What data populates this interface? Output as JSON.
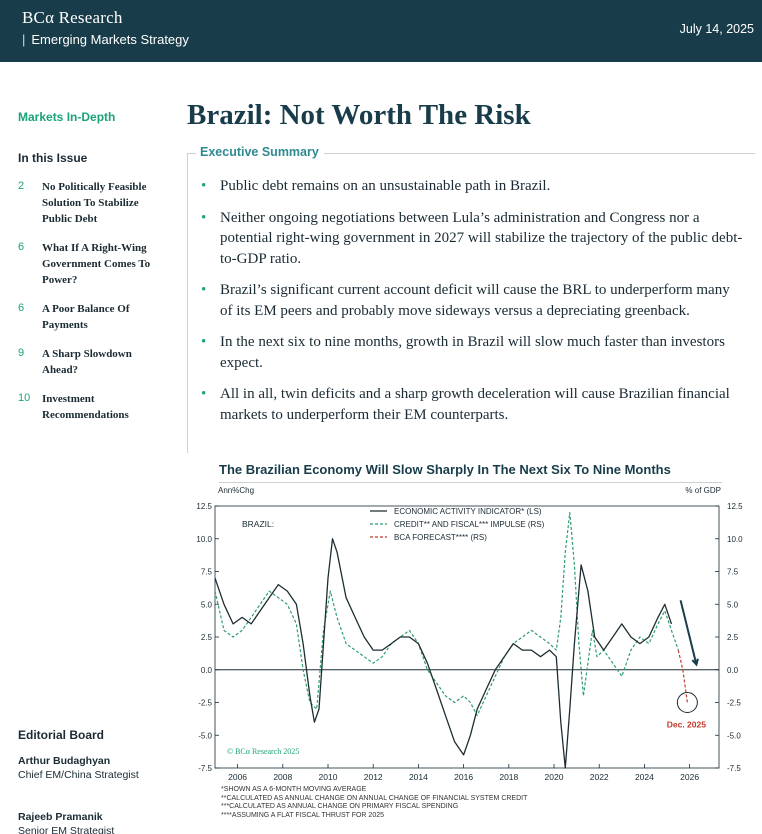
{
  "header": {
    "brand": "BCα Research",
    "product_separator": "|",
    "product": "Emerging Markets Strategy",
    "date": "July 14, 2025"
  },
  "sidebar": {
    "section": "Markets In-Depth",
    "issue_title": "In this Issue",
    "toc": [
      {
        "page": "2",
        "title": "No Politically Feasible Solution To Stabilize Public Debt"
      },
      {
        "page": "6",
        "title": "What If A Right-Wing Government Comes To Power?"
      },
      {
        "page": "6",
        "title": "A Poor Balance Of Payments"
      },
      {
        "page": "9",
        "title": "A Sharp Slowdown Ahead?"
      },
      {
        "page": "10",
        "title": "Investment Recommendations"
      }
    ],
    "board_title": "Editorial Board",
    "board": [
      {
        "name": "Arthur Budaghyan",
        "role": "Chief EM/China Strategist"
      },
      {
        "name": "Rajeeb Pramanik",
        "role": "Senior EM Strategist"
      }
    ]
  },
  "main": {
    "title": "Brazil: Not Worth The Risk",
    "exec_label": "Executive Summary",
    "bullets": [
      "Public debt remains on an unsustainable path in Brazil.",
      "Neither ongoing negotiations between Lula’s administration and Congress nor a potential right-wing government in 2027 will stabilize the trajectory of the public debt-to-GDP ratio.",
      "Brazil’s significant current account deficit will cause the BRL to underperform many of its EM peers and probably move sideways versus a depreciating greenback.",
      "In the next six to nine months, growth in Brazil will slow much faster than investors expect.",
      "All in all, twin deficits and a sharp growth deceleration will cause Brazilian financial markets to underperform their EM counterparts."
    ]
  },
  "colors": {
    "header_bg": "#183c4a",
    "accent_green": "#1aa37a",
    "activity_line": "#1e2d33",
    "impulse_line": "#2e9e6e",
    "forecast_line": "#c0392b"
  },
  "chart_data": {
    "type": "line",
    "title": "The Brazilian Economy Will Slow Sharply In The Next Six To Nine Months",
    "region_label": "BRAZIL:",
    "left_axis_label": "Ann%Chg",
    "right_axis_label": "% of GDP",
    "ylim": [
      -7.5,
      12.5
    ],
    "yticks": [
      12.5,
      10.0,
      7.5,
      5.0,
      2.5,
      0.0,
      -2.5,
      -5.0,
      -7.5
    ],
    "ytick_labels": [
      "12.5",
      "10.0",
      "7.5",
      "5.0",
      "2.5",
      "0.0",
      "-2.5",
      "-5.0",
      "-7.5"
    ],
    "xlim": [
      2005,
      2027.3
    ],
    "xticks": [
      2006,
      2008,
      2010,
      2012,
      2014,
      2016,
      2018,
      2020,
      2022,
      2024,
      2026
    ],
    "xtick_labels": [
      "2006",
      "2008",
      "2010",
      "2012",
      "2014",
      "2016",
      "2018",
      "2020",
      "2022",
      "2024",
      "2026"
    ],
    "legend": [
      "ECONOMIC ACTIVITY INDICATOR* (LS)",
      "CREDIT** AND FISCAL*** IMPULSE (RS)",
      "BCA FORECAST**** (RS)"
    ],
    "annotation": "Dec. 2025",
    "watermark": "© BCα Research 2025",
    "footnotes": [
      "*SHOWN AS A 6-MONTH MOVING AVERAGE",
      "**CALCULATED AS ANNUAL CHANGE ON ANNUAL CHANGE OF FINANCIAL SYSTEM CREDIT",
      "***CALCULATED AS ANNUAL CHANGE ON PRIMARY FISCAL SPENDING",
      "****ASSUMING A FLAT FISCAL THRUST FOR 2025"
    ],
    "series": [
      {
        "name": "Economic Activity Indicator (LS)",
        "x": [
          2005.0,
          2005.4,
          2005.8,
          2006.2,
          2006.6,
          2007.0,
          2007.4,
          2007.8,
          2008.2,
          2008.6,
          2008.9,
          2009.2,
          2009.4,
          2009.6,
          2009.8,
          2010.0,
          2010.2,
          2010.4,
          2010.8,
          2011.2,
          2011.6,
          2012.0,
          2012.4,
          2012.8,
          2013.2,
          2013.6,
          2014.0,
          2014.4,
          2014.8,
          2015.2,
          2015.6,
          2016.0,
          2016.3,
          2016.6,
          2017.0,
          2017.4,
          2017.8,
          2018.2,
          2018.6,
          2019.0,
          2019.4,
          2019.8,
          2020.1,
          2020.3,
          2020.5,
          2020.7,
          2020.9,
          2021.2,
          2021.5,
          2021.8,
          2022.2,
          2022.6,
          2023.0,
          2023.4,
          2023.8,
          2024.2,
          2024.6,
          2024.9,
          2025.2
        ],
        "values": [
          7.0,
          5.0,
          3.5,
          4.0,
          3.5,
          4.5,
          5.5,
          6.5,
          6.0,
          5.0,
          2.0,
          -2.0,
          -4.0,
          -3.0,
          2.0,
          7.0,
          10.0,
          9.0,
          5.5,
          4.0,
          2.5,
          1.5,
          1.5,
          2.0,
          2.5,
          2.5,
          2.0,
          0.5,
          -1.5,
          -3.5,
          -5.5,
          -6.5,
          -5.0,
          -3.0,
          -1.5,
          0.0,
          1.0,
          2.0,
          1.5,
          1.5,
          1.0,
          1.5,
          1.0,
          -4.0,
          -7.5,
          -3.0,
          2.0,
          8.0,
          6.0,
          2.5,
          1.5,
          2.5,
          3.5,
          2.5,
          2.0,
          2.5,
          4.0,
          5.0,
          3.5
        ]
      },
      {
        "name": "Credit and Fiscal Impulse (RS)",
        "x": [
          2005.0,
          2005.4,
          2005.8,
          2006.2,
          2006.6,
          2007.0,
          2007.4,
          2007.8,
          2008.2,
          2008.6,
          2008.9,
          2009.2,
          2009.5,
          2009.8,
          2010.1,
          2010.4,
          2010.8,
          2011.2,
          2011.6,
          2012.0,
          2012.4,
          2012.8,
          2013.2,
          2013.6,
          2014.0,
          2014.4,
          2014.8,
          2015.2,
          2015.6,
          2016.0,
          2016.3,
          2016.6,
          2017.0,
          2017.4,
          2017.8,
          2018.2,
          2018.6,
          2019.0,
          2019.4,
          2019.8,
          2020.1,
          2020.3,
          2020.5,
          2020.7,
          2020.9,
          2021.1,
          2021.3,
          2021.5,
          2021.7,
          2021.9,
          2022.2,
          2022.6,
          2023.0,
          2023.4,
          2023.8,
          2024.2,
          2024.6,
          2024.9,
          2025.2,
          2025.5
        ],
        "values": [
          6.0,
          3.0,
          2.5,
          3.0,
          4.0,
          5.0,
          6.0,
          5.5,
          5.0,
          3.5,
          0.0,
          -2.5,
          -3.0,
          3.0,
          6.0,
          4.0,
          2.0,
          1.5,
          1.0,
          0.5,
          1.0,
          2.0,
          2.5,
          3.0,
          2.0,
          0.0,
          -1.0,
          -2.0,
          -2.5,
          -2.0,
          -2.5,
          -3.5,
          -2.0,
          -0.5,
          1.0,
          2.0,
          2.5,
          3.0,
          2.5,
          2.0,
          1.5,
          4.0,
          9.0,
          12.0,
          8.0,
          2.0,
          -2.0,
          0.5,
          3.0,
          1.0,
          1.5,
          0.5,
          -0.5,
          1.5,
          2.5,
          2.0,
          3.5,
          4.5,
          3.0,
          1.5
        ]
      },
      {
        "name": "BCA Forecast (RS)",
        "x": [
          2025.5,
          2025.7,
          2025.9
        ],
        "values": [
          1.5,
          0.0,
          -2.5
        ]
      }
    ]
  }
}
